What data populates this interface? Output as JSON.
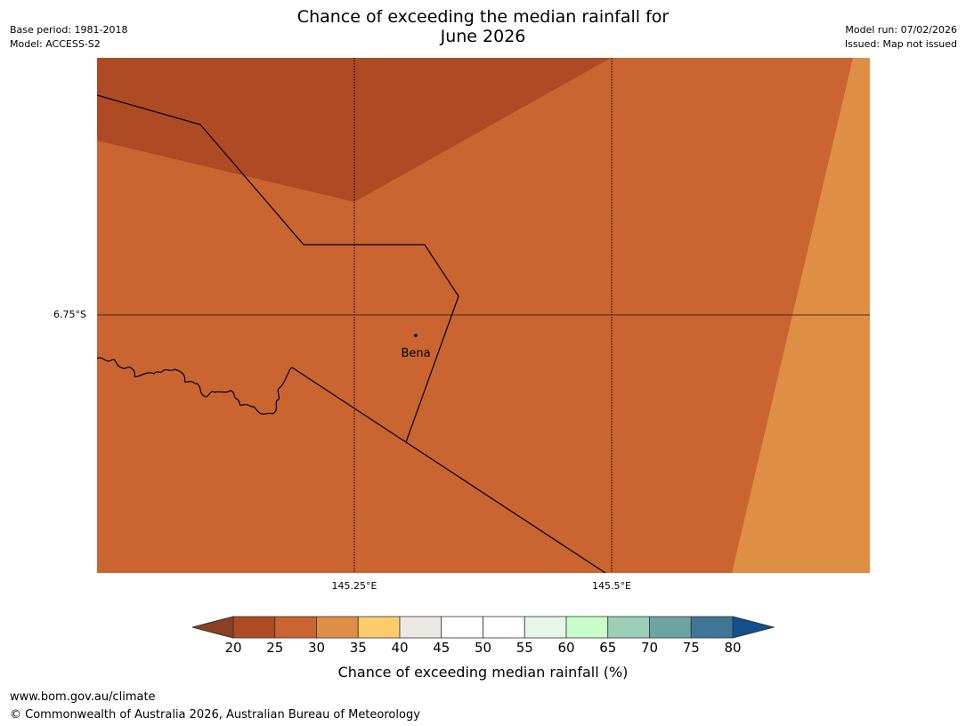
{
  "header": {
    "title_line1": "Chance of exceeding the median rainfall for",
    "title_line2": "June 2026",
    "base_period": "Base period: 1981-2018",
    "model": "Model: ACCESS-S2",
    "model_run": "Model run: 07/02/2026",
    "issued": "Issued: Map not issued"
  },
  "map": {
    "place_label": "Bena",
    "lat_label": "6.75°S",
    "lon_labels": [
      "145.25°E",
      "145.5°E"
    ]
  },
  "colors": {
    "c15_20": "#8B4124",
    "c20_25": "#AE4A24",
    "c25_30": "#CA6431",
    "c30_35": "#DE8F45",
    "c35_40": "#FDCC6A",
    "c40_45": "#ECE8E4",
    "c45_50": "#FFFFFF",
    "c50_55": "#FFFFFF",
    "c55_60": "#E8F6E8",
    "c60_65": "#C8FCC8",
    "c65_70": "#9CCFB7",
    "c70_75": "#6CA3A3",
    "c75_80": "#3F7597",
    "c80_plus": "#134F8E"
  },
  "colorbar": {
    "ticks": [
      "20",
      "25",
      "30",
      "35",
      "40",
      "45",
      "50",
      "55",
      "60",
      "65",
      "70",
      "75",
      "80"
    ],
    "label": "Chance of exceeding median rainfall (%)"
  },
  "footer": {
    "url": "www.bom.gov.au/climate",
    "copyright": "© Commonwealth of Australia 2026, Australian Bureau of Meteorology"
  }
}
